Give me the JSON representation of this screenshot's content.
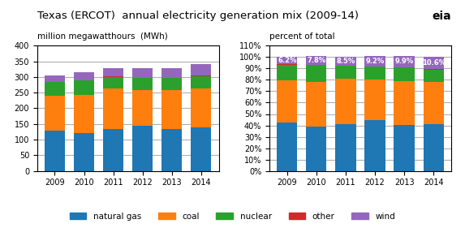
{
  "chart_data": [
    {
      "type": "bar",
      "stacked": true,
      "title": "Texas (ERCOT)  annual electricity generation mix (2009-14)",
      "subtitle": "million megawatthours  (MWh)",
      "annotations": [
        "eia"
      ],
      "legend": "lower center",
      "grid": true,
      "categories": [
        "2009",
        "2010",
        "2011",
        "2012",
        "2013",
        "2014"
      ],
      "series": [
        {
          "name": "natural gas",
          "values": [
            128,
            120,
            133,
            145,
            133,
            140
          ]
        },
        {
          "name": "coal",
          "values": [
            113,
            122,
            130,
            113,
            125,
            124
          ]
        },
        {
          "name": "nuclear",
          "values": [
            42,
            46,
            37,
            38,
            38,
            38
          ]
        },
        {
          "name": "other",
          "values": [
            2,
            2,
            2,
            2,
            1,
            2
          ]
        },
        {
          "name": "wind",
          "values": [
            19,
            24,
            26,
            30,
            32,
            37
          ]
        }
      ],
      "ylim": [
        0,
        400
      ],
      "yticks": [
        0,
        50,
        100,
        150,
        200,
        250,
        300,
        350,
        400
      ]
    },
    {
      "type": "bar",
      "stacked": true,
      "subtitle": "percent of total",
      "grid": true,
      "categories": [
        "2009",
        "2010",
        "2011",
        "2012",
        "2013",
        "2014"
      ],
      "series": [
        {
          "name": "natural gas",
          "values": [
            42.3,
            38.8,
            40.8,
            45.0,
            40.7,
            41.3
          ]
        },
        {
          "name": "coal",
          "values": [
            37.0,
            39.5,
            39.9,
            35.1,
            38.3,
            36.6
          ]
        },
        {
          "name": "nuclear",
          "values": [
            13.8,
            14.9,
            11.3,
            11.8,
            11.6,
            11.2
          ]
        },
        {
          "name": "other",
          "values": [
            0.7,
            0.0,
            0.0,
            0.0,
            0.5,
            0.3
          ]
        },
        {
          "name": "wind",
          "values": [
            6.2,
            7.8,
            8.5,
            9.2,
            9.9,
            10.6
          ],
          "data_labels": true,
          "value_labels": [
            "6.2%",
            "7.8%",
            "8.5%",
            "9.2%",
            "9.9%",
            "10.6%"
          ]
        }
      ],
      "ylim": [
        0,
        110
      ],
      "yticks": [
        {
          "value": 0,
          "label": "0%"
        },
        {
          "value": 10,
          "label": "10%"
        },
        {
          "value": 20,
          "label": "20%"
        },
        {
          "value": 30,
          "label": "30%"
        },
        {
          "value": 40,
          "label": "40%"
        },
        {
          "value": 50,
          "label": "50%"
        },
        {
          "value": 60,
          "label": "60%"
        },
        {
          "value": 70,
          "label": "70%"
        },
        {
          "value": 80,
          "label": "80%"
        },
        {
          "value": 90,
          "label": "90%"
        },
        {
          "value": 100,
          "label": "100%"
        },
        {
          "value": 110,
          "label": "110%"
        }
      ]
    }
  ]
}
